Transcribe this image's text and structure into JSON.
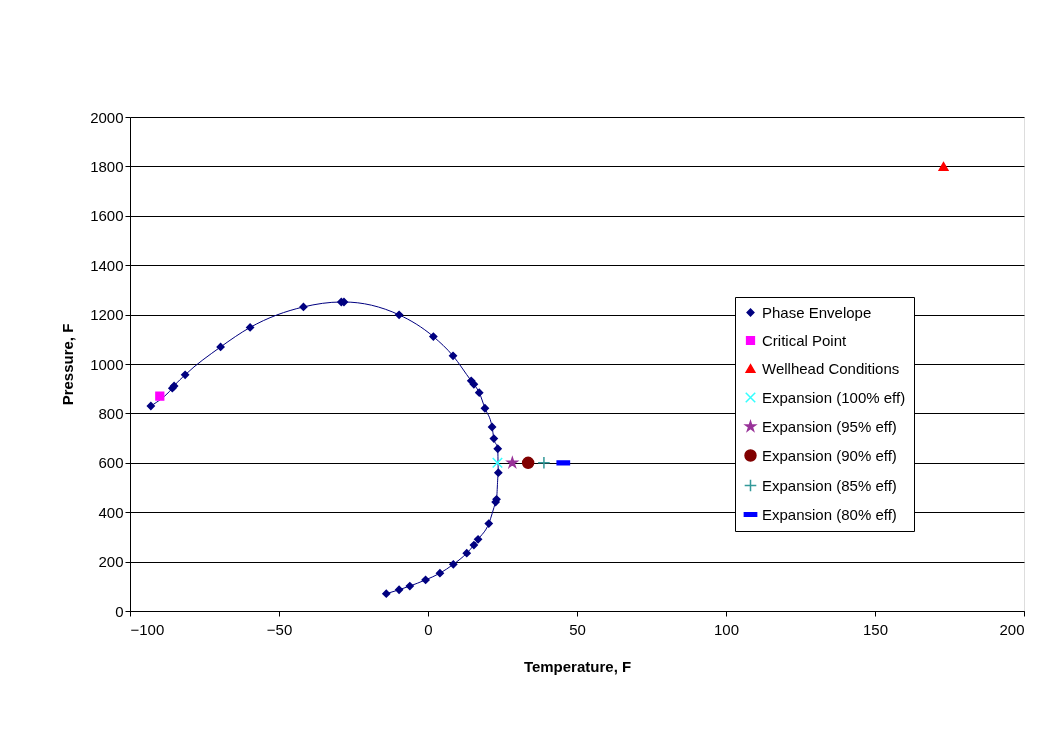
{
  "chart_data": {
    "type": "scatter",
    "xlabel": "Temperature, F",
    "ylabel": "Pressure, F",
    "xlim": [
      -100,
      200
    ],
    "ylim": [
      0,
      2000
    ],
    "xticks": [
      -100,
      -50,
      0,
      50,
      100,
      150,
      200
    ],
    "yticks": [
      0,
      200,
      400,
      600,
      800,
      1000,
      1200,
      1400,
      1600,
      1800,
      2000
    ],
    "grid": "y",
    "legend": "right",
    "series": [
      {
        "name": "Phase Envelope",
        "type": "line",
        "marker": "diamond",
        "color": "#000080",
        "x": [
          -93,
          -85.8,
          -85.2,
          -81.5,
          -69.6,
          -59.7,
          -41.8,
          -29.1,
          -28.2,
          -9.7,
          1.8,
          8.4,
          14.5,
          15.4,
          17.2,
          19.1,
          21.5,
          22.1,
          23.4,
          23.6,
          23.0,
          22.7,
          20.4,
          16.8,
          15.4,
          13.0,
          8.5,
          4.0,
          -0.8,
          -6.1,
          -9.7,
          -14.0
        ],
        "values": [
          830,
          902,
          911,
          956,
          1069,
          1148,
          1231,
          1251,
          1251,
          1199,
          1111,
          1033,
          932,
          918,
          884,
          821,
          745,
          698,
          657,
          560,
          452,
          441,
          354,
          290,
          267,
          234,
          189,
          153,
          126,
          101,
          86,
          70
        ]
      },
      {
        "name": "Critical Point",
        "type": "scatter",
        "marker": "square",
        "color": "#ff00ff",
        "x": [
          -90
        ],
        "values": [
          870
        ]
      },
      {
        "name": "Wellhead Conditions",
        "type": "scatter",
        "marker": "triangle",
        "color": "#ff0000",
        "x": [
          173
        ],
        "values": [
          1800
        ]
      },
      {
        "name": "Expansion (100% eff)",
        "type": "scatter",
        "marker": "cross",
        "color": "#33ffff",
        "x": [
          23.3
        ],
        "values": [
          600
        ]
      },
      {
        "name": "Expansion (95% eff)",
        "type": "scatter",
        "marker": "star",
        "color": "#993399",
        "x": [
          28.3
        ],
        "values": [
          600
        ]
      },
      {
        "name": "Expansion (90% eff)",
        "type": "scatter",
        "marker": "circle",
        "color": "#800000",
        "x": [
          33.6
        ],
        "values": [
          600
        ]
      },
      {
        "name": "Expansion (85% eff)",
        "type": "scatter",
        "marker": "plus",
        "color": "#339999",
        "x": [
          38.9
        ],
        "values": [
          600
        ]
      },
      {
        "name": "Expansion (80% eff)",
        "type": "scatter",
        "color": "#0000ff",
        "x": [
          45.4
        ],
        "values": [
          600
        ]
      }
    ]
  }
}
